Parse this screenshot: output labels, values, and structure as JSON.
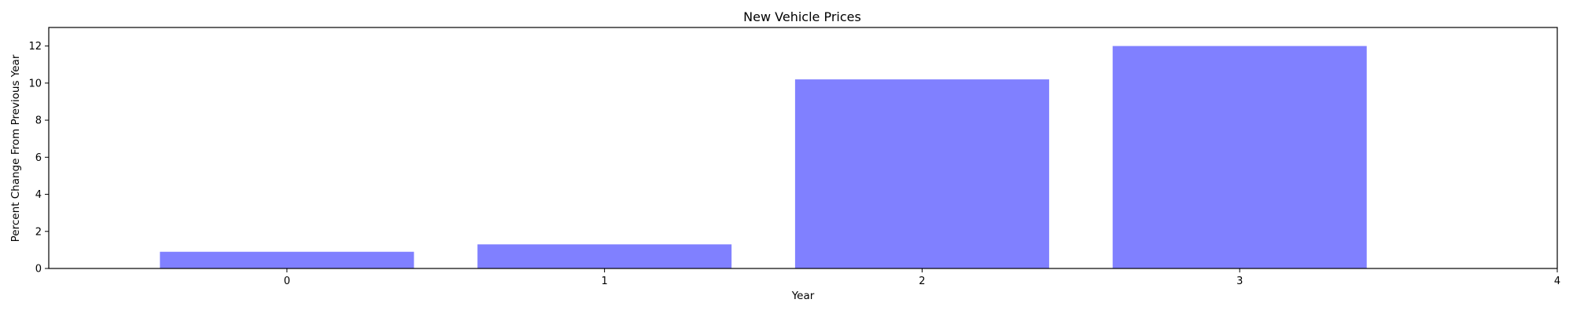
{
  "chart_data": {
    "type": "bar",
    "title": "New Vehicle Prices",
    "xlabel": "Year",
    "ylabel": "Percent Change From Previous Year",
    "x": [
      0,
      1,
      2,
      3
    ],
    "values": [
      0.9,
      1.3,
      10.2,
      12.0
    ],
    "bar_width": 0.8,
    "bar_color": "#8080ff",
    "xlim": [
      -0.75,
      4
    ],
    "ylim": [
      0,
      13
    ],
    "xticks": [
      0,
      1,
      2,
      3,
      4
    ],
    "yticks": [
      0,
      2,
      4,
      6,
      8,
      10,
      12
    ],
    "grid": false,
    "legend": "none"
  }
}
